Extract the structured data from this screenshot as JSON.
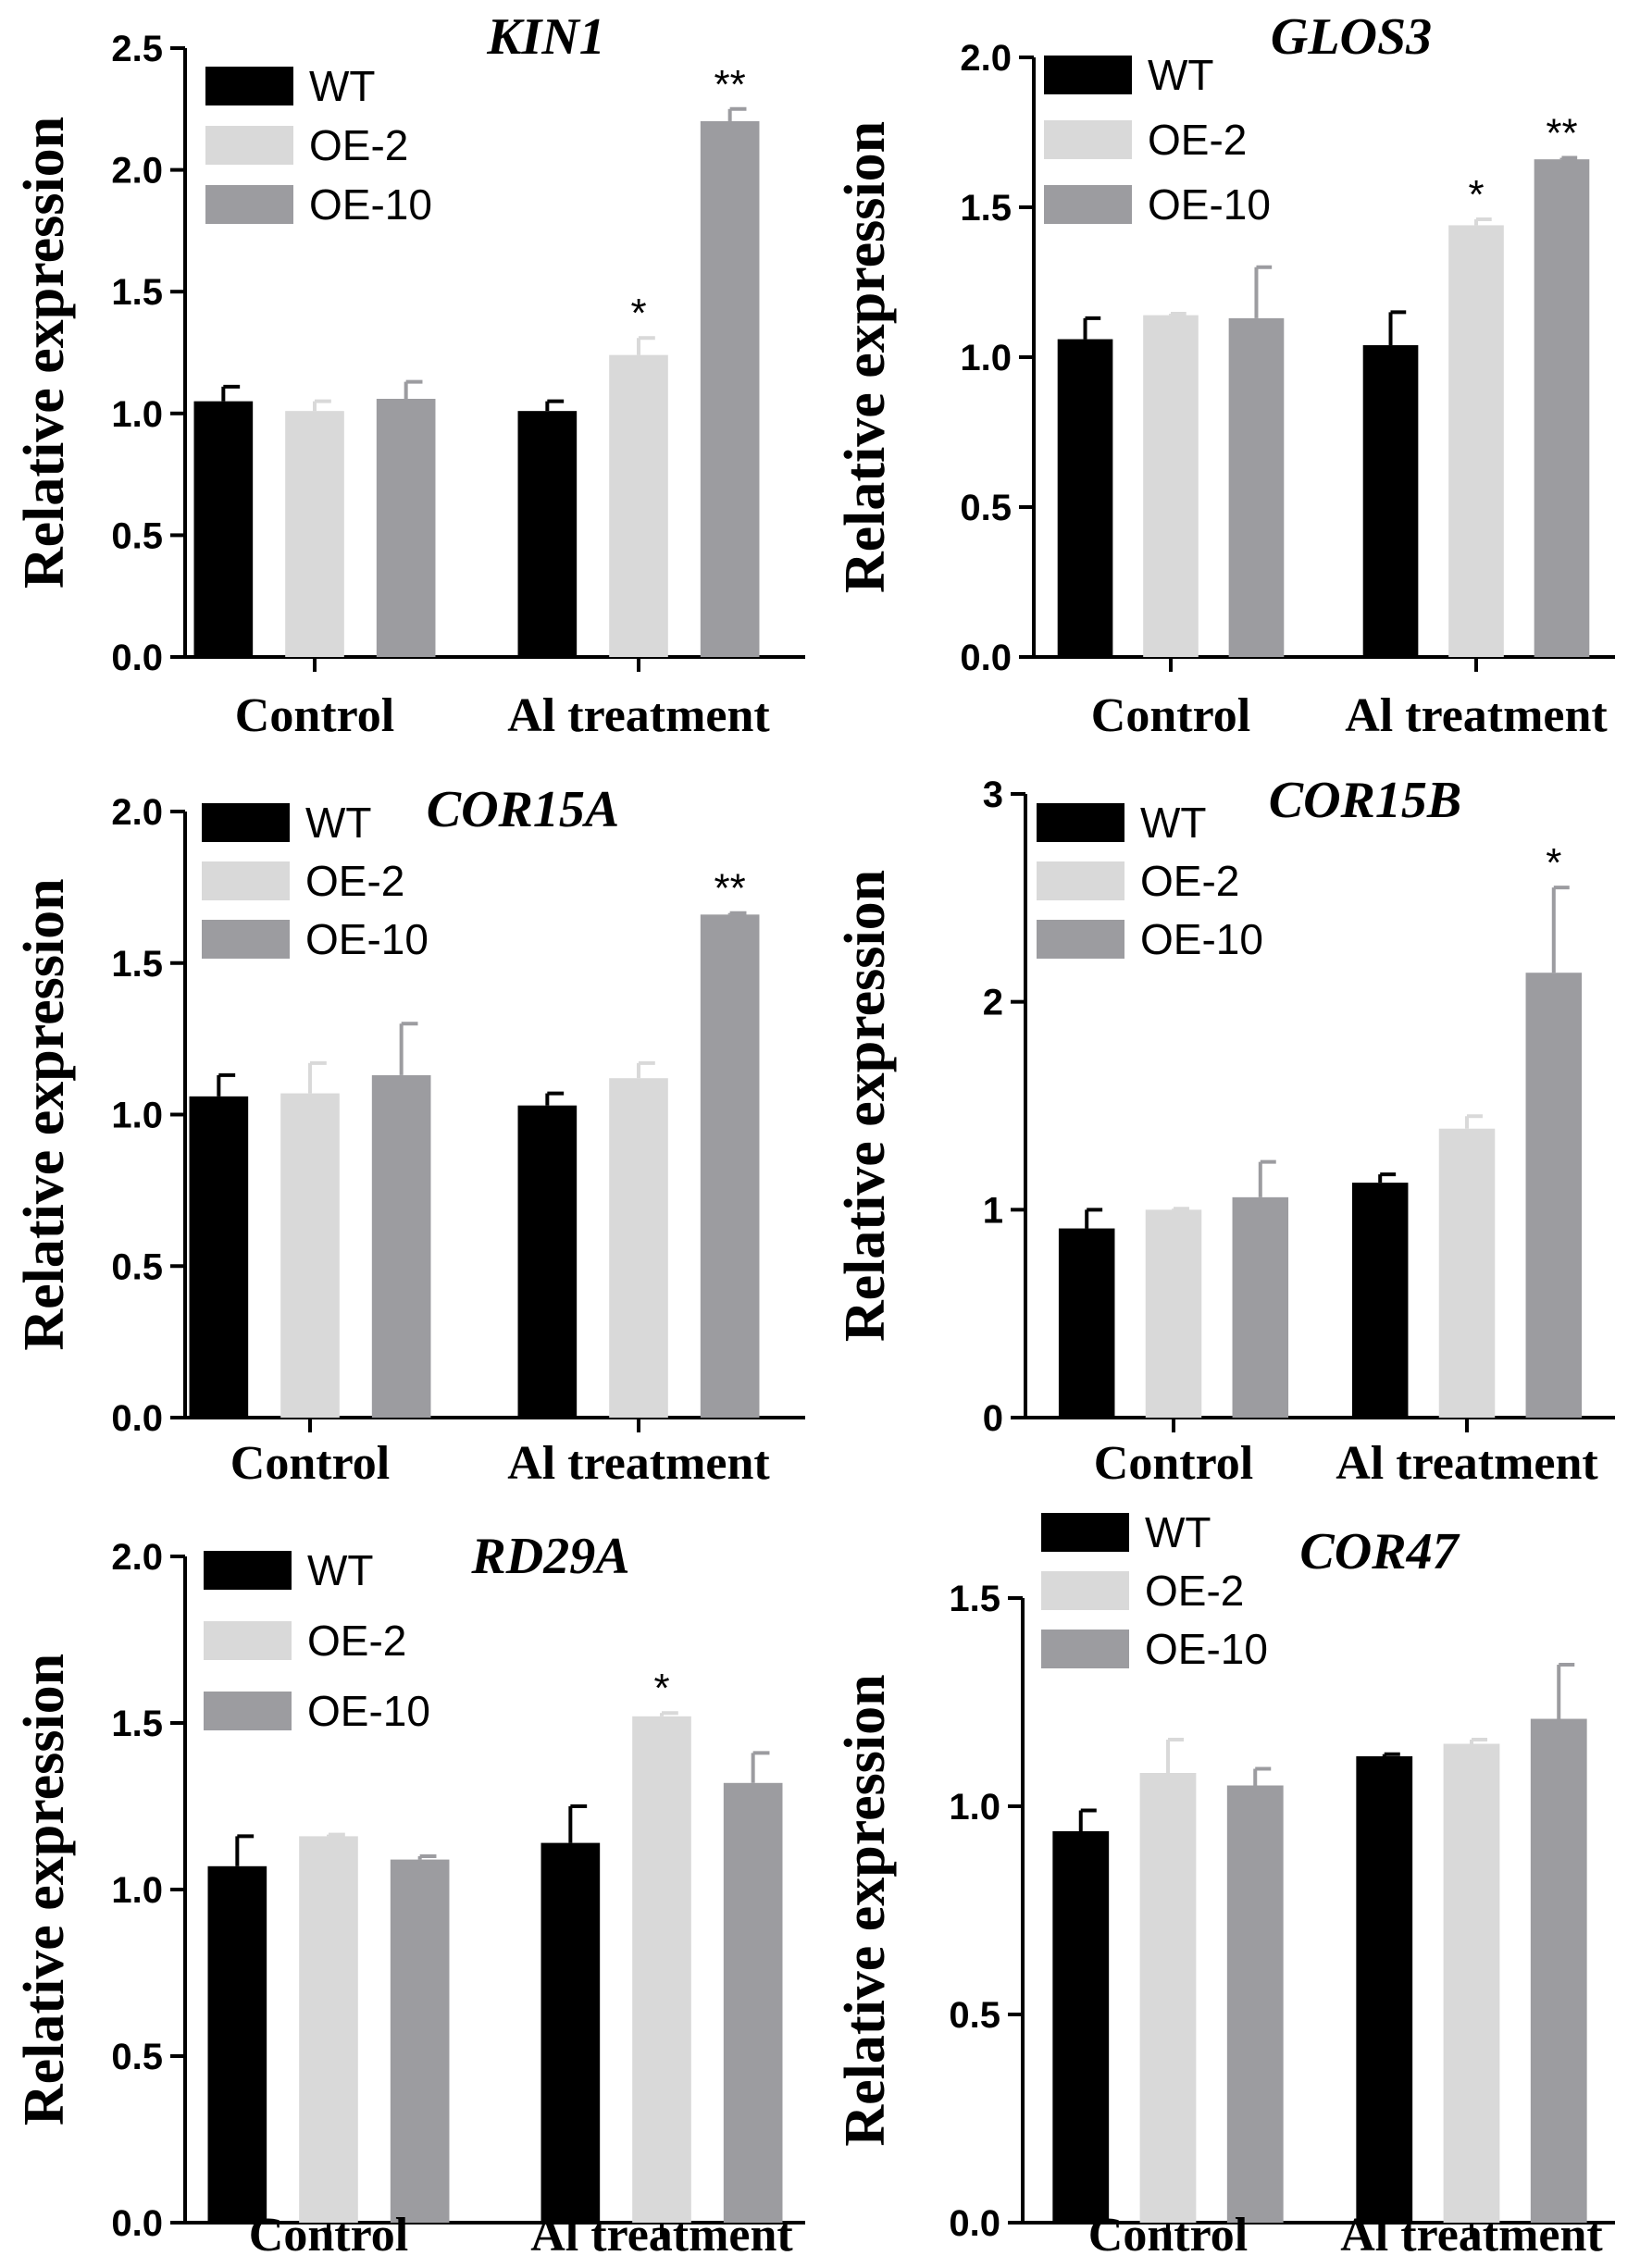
{
  "colors": {
    "WT": "#000000",
    "OE-2": "#d9d9d9",
    "OE-10": "#9c9ca0"
  },
  "chart_data": [
    {
      "type": "bar",
      "title": "KIN1",
      "ylabel": "Relative expression",
      "xlabel": "",
      "categories": [
        "Control",
        "Al treatment"
      ],
      "ylim": [
        0,
        2.5
      ],
      "yticks": [
        "0.0",
        "0.5",
        "1.0",
        "1.5",
        "2.0",
        "2.5"
      ],
      "legend_position": "top-left",
      "series": [
        {
          "name": "WT",
          "values": [
            1.05,
            1.01
          ],
          "errors": [
            0.06,
            0.04
          ],
          "sig": [
            "",
            ""
          ]
        },
        {
          "name": "OE-2",
          "values": [
            1.01,
            1.24
          ],
          "errors": [
            0.04,
            0.07
          ],
          "sig": [
            "",
            "*"
          ]
        },
        {
          "name": "OE-10",
          "values": [
            1.06,
            2.2
          ],
          "errors": [
            0.07,
            0.05
          ],
          "sig": [
            "",
            "**"
          ]
        }
      ]
    },
    {
      "type": "bar",
      "title": "GLOS3",
      "ylabel": "Relative expression",
      "xlabel": "",
      "categories": [
        "Control",
        "Al treatment"
      ],
      "ylim": [
        0,
        2.0
      ],
      "yticks": [
        "0.0",
        "0.5",
        "1.0",
        "1.5",
        "2.0"
      ],
      "legend_position": "top-left",
      "series": [
        {
          "name": "WT",
          "values": [
            1.06,
            1.04
          ],
          "errors": [
            0.07,
            0.11
          ],
          "sig": [
            "",
            ""
          ]
        },
        {
          "name": "OE-2",
          "values": [
            1.14,
            1.44
          ],
          "errors": [
            0.005,
            0.02
          ],
          "sig": [
            "",
            "*"
          ]
        },
        {
          "name": "OE-10",
          "values": [
            1.13,
            1.66
          ],
          "errors": [
            0.17,
            0.005
          ],
          "sig": [
            "",
            "**"
          ]
        }
      ]
    },
    {
      "type": "bar",
      "title": "COR15A",
      "ylabel": "Relative expression",
      "xlabel": "",
      "categories": [
        "Control",
        "Al treatment"
      ],
      "ylim": [
        0,
        2.0
      ],
      "yticks": [
        "0.0",
        "0.5",
        "1.0",
        "1.5",
        "2.0"
      ],
      "legend_position": "top-left",
      "series": [
        {
          "name": "WT",
          "values": [
            1.06,
            1.03
          ],
          "errors": [
            0.07,
            0.04
          ],
          "sig": [
            "",
            ""
          ]
        },
        {
          "name": "OE-2",
          "values": [
            1.07,
            1.12
          ],
          "errors": [
            0.1,
            0.05
          ],
          "sig": [
            "",
            ""
          ]
        },
        {
          "name": "OE-10",
          "values": [
            1.13,
            1.66
          ],
          "errors": [
            0.17,
            0.005
          ],
          "sig": [
            "",
            "**"
          ]
        }
      ]
    },
    {
      "type": "bar",
      "title": "COR15B",
      "ylabel": "Relative expression",
      "xlabel": "",
      "categories": [
        "Control",
        "Al treatment"
      ],
      "ylim": [
        0,
        3
      ],
      "yticks": [
        "0",
        "1",
        "2",
        "3"
      ],
      "legend_position": "top-left",
      "series": [
        {
          "name": "WT",
          "values": [
            0.91,
            1.13
          ],
          "errors": [
            0.09,
            0.04
          ],
          "sig": [
            "",
            ""
          ]
        },
        {
          "name": "OE-2",
          "values": [
            1.0,
            1.39
          ],
          "errors": [
            0.005,
            0.06
          ],
          "sig": [
            "",
            ""
          ]
        },
        {
          "name": "OE-10",
          "values": [
            1.06,
            2.14
          ],
          "errors": [
            0.17,
            0.41
          ],
          "sig": [
            "",
            "*"
          ]
        }
      ]
    },
    {
      "type": "bar",
      "title": "RD29A",
      "ylabel": "Relative expression",
      "xlabel": "",
      "categories": [
        "Control",
        "Al treatment"
      ],
      "ylim": [
        0,
        2.0
      ],
      "yticks": [
        "0.0",
        "0.5",
        "1.0",
        "1.5",
        "2.0"
      ],
      "legend_position": "top-left",
      "series": [
        {
          "name": "WT",
          "values": [
            1.07,
            1.14
          ],
          "errors": [
            0.09,
            0.11
          ],
          "sig": [
            "",
            ""
          ]
        },
        {
          "name": "OE-2",
          "values": [
            1.16,
            1.52
          ],
          "errors": [
            0.005,
            0.01
          ],
          "sig": [
            "",
            "*"
          ]
        },
        {
          "name": "OE-10",
          "values": [
            1.09,
            1.32
          ],
          "errors": [
            0.01,
            0.09
          ],
          "sig": [
            "",
            ""
          ]
        }
      ]
    },
    {
      "type": "bar",
      "title": "COR47",
      "ylabel": "Relative expression",
      "xlabel": "",
      "categories": [
        "Control",
        "Al treatment"
      ],
      "ylim": [
        0,
        1.5
      ],
      "yticks": [
        "0.0",
        "0.5",
        "1.0",
        "1.5"
      ],
      "legend_position": "top-left",
      "series": [
        {
          "name": "WT",
          "values": [
            0.94,
            1.12
          ],
          "errors": [
            0.05,
            0.005
          ],
          "sig": [
            "",
            ""
          ]
        },
        {
          "name": "OE-2",
          "values": [
            1.08,
            1.15
          ],
          "errors": [
            0.08,
            0.01
          ],
          "sig": [
            "",
            ""
          ]
        },
        {
          "name": "OE-10",
          "values": [
            1.05,
            1.21
          ],
          "errors": [
            0.04,
            0.13
          ],
          "sig": [
            "",
            ""
          ]
        }
      ]
    }
  ]
}
